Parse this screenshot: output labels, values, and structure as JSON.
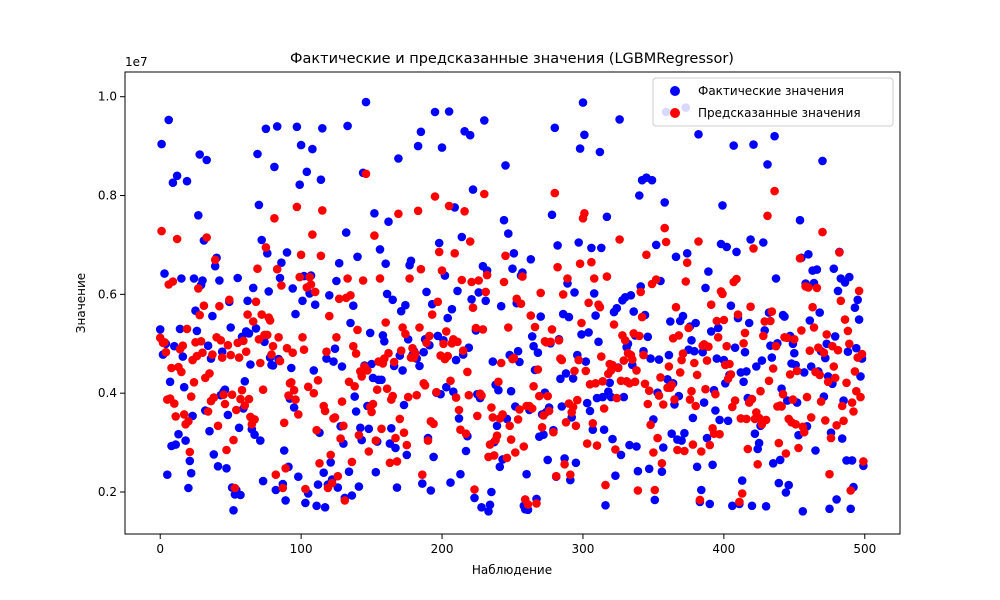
{
  "chart_data": {
    "type": "scatter",
    "title": "Фактические и предсказанные значения (LGBMRegressor)",
    "xlabel": "Наблюдение",
    "ylabel": "Значение",
    "y_offset_text": "1e7",
    "y_scale": 10000000,
    "xlim": [
      -25,
      525
    ],
    "ylim": [
      11500000,
      10500000
    ],
    "ylim_note": "",
    "x_ticks": [
      0,
      100,
      200,
      300,
      400,
      500
    ],
    "x_tick_labels": [
      "0",
      "100",
      "200",
      "300",
      "400",
      "500"
    ],
    "y_ticks": [
      0.2,
      0.4,
      0.6,
      0.8,
      1.0
    ],
    "y_tick_labels": [
      "0.2",
      "0.4",
      "0.6",
      "0.8",
      "1.0"
    ],
    "legend_position": "top-right",
    "grid": false,
    "series": [
      {
        "name": "Фактические значения",
        "color": "#0000ff",
        "values": []
      },
      {
        "name": "Предсказанные значения",
        "color": "#ff0000",
        "values": []
      }
    ]
  }
}
